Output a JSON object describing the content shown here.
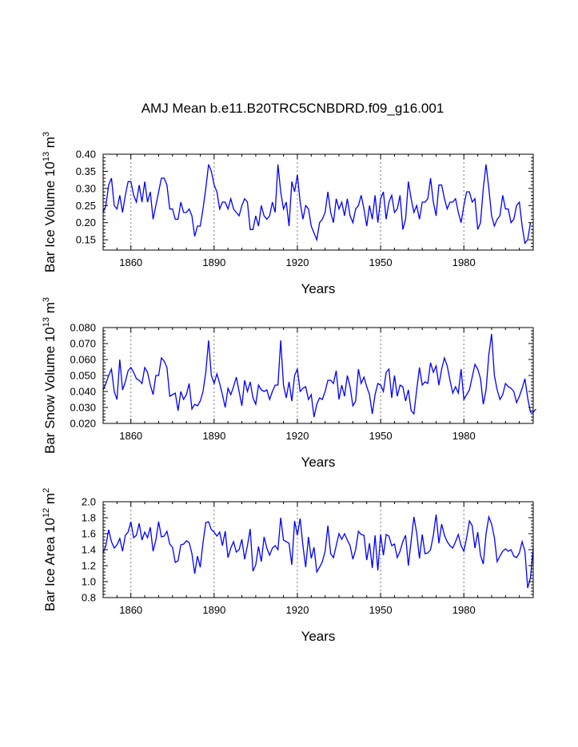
{
  "title": "AMJ Mean b.e11.B20TRC5CNBDRD.f09_g16.001",
  "chart_data": [
    {
      "type": "line",
      "name": "ice-volume",
      "ylabel": {
        "main": "Bar Ice Volume 10",
        "exp": "13",
        "unit": " m",
        "unit_exp": "3"
      },
      "xlabel": "Years",
      "xlim": [
        1850,
        2005
      ],
      "ylim": [
        0.12,
        0.4
      ],
      "xticks": [
        1860,
        1890,
        1920,
        1950,
        1980
      ],
      "yticks": [
        "0.15",
        "0.20",
        "0.25",
        "0.30",
        "0.35",
        "0.40"
      ],
      "ytick_values": [
        0.15,
        0.2,
        0.25,
        0.3,
        0.35,
        0.4
      ],
      "x_start": 1850,
      "color": "#0000ff",
      "values": [
        0.23,
        0.25,
        0.31,
        0.33,
        0.25,
        0.24,
        0.28,
        0.23,
        0.28,
        0.32,
        0.32,
        0.28,
        0.26,
        0.31,
        0.26,
        0.32,
        0.26,
        0.29,
        0.21,
        0.25,
        0.29,
        0.33,
        0.33,
        0.31,
        0.24,
        0.24,
        0.21,
        0.21,
        0.26,
        0.23,
        0.23,
        0.24,
        0.22,
        0.16,
        0.19,
        0.19,
        0.24,
        0.3,
        0.37,
        0.35,
        0.31,
        0.29,
        0.24,
        0.26,
        0.26,
        0.24,
        0.27,
        0.24,
        0.23,
        0.22,
        0.25,
        0.27,
        0.26,
        0.18,
        0.18,
        0.22,
        0.19,
        0.25,
        0.22,
        0.21,
        0.22,
        0.26,
        0.23,
        0.37,
        0.29,
        0.24,
        0.26,
        0.19,
        0.32,
        0.29,
        0.34,
        0.26,
        0.21,
        0.25,
        0.24,
        0.19,
        0.17,
        0.15,
        0.2,
        0.21,
        0.23,
        0.29,
        0.23,
        0.2,
        0.27,
        0.24,
        0.26,
        0.22,
        0.27,
        0.22,
        0.2,
        0.24,
        0.25,
        0.28,
        0.24,
        0.19,
        0.25,
        0.21,
        0.28,
        0.2,
        0.27,
        0.29,
        0.21,
        0.26,
        0.28,
        0.23,
        0.24,
        0.28,
        0.18,
        0.21,
        0.32,
        0.27,
        0.23,
        0.25,
        0.21,
        0.26,
        0.26,
        0.27,
        0.33,
        0.26,
        0.22,
        0.31,
        0.31,
        0.27,
        0.24,
        0.26,
        0.26,
        0.27,
        0.23,
        0.2,
        0.25,
        0.29,
        0.29,
        0.26,
        0.27,
        0.18,
        0.2,
        0.3,
        0.37,
        0.3,
        0.22,
        0.19,
        0.21,
        0.22,
        0.28,
        0.24,
        0.24,
        0.2,
        0.21,
        0.25,
        0.26,
        0.19,
        0.14,
        0.15,
        0.2
      ]
    },
    {
      "type": "line",
      "name": "snow-volume",
      "ylabel": {
        "main": "Bar Snow Volume 10",
        "exp": "13",
        "unit": " m",
        "unit_exp": "3"
      },
      "xlabel": "Years",
      "xlim": [
        1850,
        2005
      ],
      "ylim": [
        0.02,
        0.08
      ],
      "xticks": [
        1860,
        1890,
        1920,
        1950,
        1980
      ],
      "yticks": [
        "0.020",
        "0.030",
        "0.040",
        "0.050",
        "0.060",
        "0.070",
        "0.080"
      ],
      "ytick_values": [
        0.02,
        0.03,
        0.04,
        0.05,
        0.06,
        0.07,
        0.08
      ],
      "x_start": 1850,
      "color": "#0000ff",
      "values": [
        0.041,
        0.045,
        0.05,
        0.054,
        0.04,
        0.035,
        0.06,
        0.041,
        0.046,
        0.053,
        0.055,
        0.052,
        0.048,
        0.047,
        0.045,
        0.055,
        0.052,
        0.044,
        0.038,
        0.05,
        0.05,
        0.061,
        0.059,
        0.055,
        0.037,
        0.038,
        0.039,
        0.028,
        0.04,
        0.035,
        0.038,
        0.045,
        0.029,
        0.032,
        0.031,
        0.034,
        0.04,
        0.052,
        0.072,
        0.05,
        0.045,
        0.051,
        0.045,
        0.038,
        0.03,
        0.042,
        0.038,
        0.043,
        0.049,
        0.04,
        0.031,
        0.047,
        0.04,
        0.046,
        0.036,
        0.032,
        0.044,
        0.041,
        0.04,
        0.041,
        0.035,
        0.04,
        0.044,
        0.044,
        0.072,
        0.044,
        0.036,
        0.046,
        0.034,
        0.05,
        0.054,
        0.04,
        0.042,
        0.043,
        0.035,
        0.038,
        0.024,
        0.032,
        0.036,
        0.035,
        0.04,
        0.047,
        0.047,
        0.045,
        0.053,
        0.035,
        0.044,
        0.037,
        0.05,
        0.043,
        0.031,
        0.034,
        0.054,
        0.045,
        0.049,
        0.043,
        0.038,
        0.026,
        0.038,
        0.045,
        0.044,
        0.04,
        0.052,
        0.054,
        0.036,
        0.05,
        0.037,
        0.044,
        0.043,
        0.034,
        0.041,
        0.028,
        0.026,
        0.041,
        0.055,
        0.044,
        0.046,
        0.045,
        0.058,
        0.052,
        0.056,
        0.044,
        0.054,
        0.061,
        0.056,
        0.047,
        0.039,
        0.043,
        0.039,
        0.054,
        0.035,
        0.038,
        0.041,
        0.049,
        0.057,
        0.054,
        0.048,
        0.032,
        0.041,
        0.063,
        0.076,
        0.05,
        0.041,
        0.035,
        0.038,
        0.045,
        0.043,
        0.042,
        0.04,
        0.033,
        0.037,
        0.042,
        0.048,
        0.036,
        0.027,
        0.027,
        0.029
      ]
    },
    {
      "type": "line",
      "name": "ice-area",
      "ylabel": {
        "main": "Bar Ice Area 10",
        "exp": "12",
        "unit": " m",
        "unit_exp": "2"
      },
      "xlabel": "Years",
      "xlim": [
        1850,
        2005
      ],
      "ylim": [
        0.8,
        2.0
      ],
      "xticks": [
        1860,
        1890,
        1920,
        1950,
        1980
      ],
      "yticks": [
        "0.8",
        "1.0",
        "1.2",
        "1.4",
        "1.6",
        "1.8",
        "2.0"
      ],
      "ytick_values": [
        0.8,
        1.0,
        1.2,
        1.4,
        1.6,
        1.8,
        2.0
      ],
      "x_start": 1850,
      "color": "#0000ff",
      "values": [
        1.36,
        1.45,
        1.65,
        1.5,
        1.42,
        1.46,
        1.54,
        1.38,
        1.58,
        1.62,
        1.75,
        1.55,
        1.58,
        1.73,
        1.52,
        1.62,
        1.55,
        1.68,
        1.38,
        1.52,
        1.75,
        1.56,
        1.57,
        1.63,
        1.47,
        1.43,
        1.24,
        1.26,
        1.46,
        1.47,
        1.51,
        1.49,
        1.35,
        1.1,
        1.32,
        1.18,
        1.49,
        1.74,
        1.75,
        1.65,
        1.62,
        1.57,
        1.62,
        1.45,
        1.63,
        1.3,
        1.42,
        1.5,
        1.37,
        1.4,
        1.53,
        1.28,
        1.45,
        1.66,
        1.13,
        1.21,
        1.44,
        1.25,
        1.56,
        1.42,
        1.33,
        1.42,
        1.45,
        1.4,
        1.8,
        1.52,
        1.5,
        1.48,
        1.21,
        1.76,
        1.58,
        1.79,
        1.45,
        1.18,
        1.56,
        1.29,
        1.43,
        1.12,
        1.18,
        1.25,
        1.38,
        1.7,
        1.35,
        1.3,
        1.45,
        1.6,
        1.53,
        1.6,
        1.52,
        1.45,
        1.28,
        1.4,
        1.63,
        1.59,
        1.58,
        1.27,
        1.48,
        1.17,
        1.58,
        1.14,
        1.59,
        1.33,
        1.59,
        1.57,
        1.45,
        1.47,
        1.3,
        1.38,
        1.5,
        1.58,
        1.2,
        1.51,
        1.81,
        1.61,
        1.29,
        1.59,
        1.35,
        1.36,
        1.4,
        1.58,
        1.84,
        1.48,
        1.72,
        1.58,
        1.5,
        1.45,
        1.42,
        1.5,
        1.59,
        1.45,
        1.38,
        1.55,
        1.76,
        1.7,
        1.42,
        1.62,
        1.33,
        1.22,
        1.6,
        1.81,
        1.72,
        1.55,
        1.25,
        1.32,
        1.38,
        1.41,
        1.38,
        1.4,
        1.32,
        1.3,
        1.36,
        1.5,
        1.38,
        0.92,
        1.05,
        1.42
      ]
    }
  ]
}
